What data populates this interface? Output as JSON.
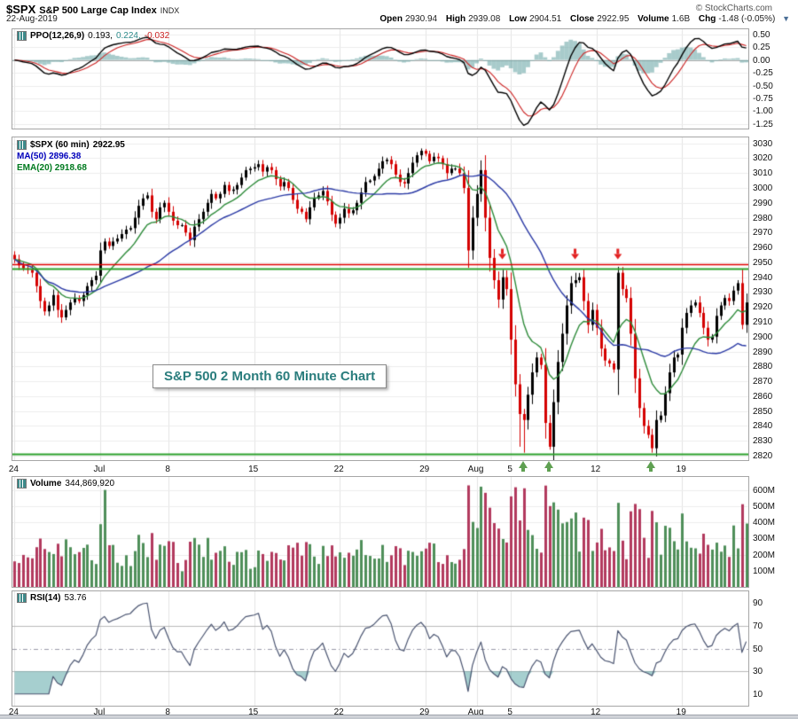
{
  "header": {
    "symbol": "$SPX",
    "name": "S&P 500 Large Cap Index",
    "exchange": "INDX",
    "copyright": "© StockCharts.com",
    "date": "22-Aug-2019",
    "dropdown_icon": "▼",
    "quote": [
      {
        "label": "Open",
        "value": "2930.94"
      },
      {
        "label": "High",
        "value": "2939.08"
      },
      {
        "label": "Low",
        "value": "2904.51"
      },
      {
        "label": "Close",
        "value": "2922.95"
      },
      {
        "label": "Volume",
        "value": "1.6B"
      },
      {
        "label": "Chg",
        "value": "-1.48 (-0.05%)"
      }
    ]
  },
  "panels": {
    "ppo": {
      "label": "PPO(12,26,9)",
      "v1": "0.193,",
      "v2": "0.224,",
      "v3": "-0.032",
      "ticks": [
        "0.50",
        "0.25",
        "0.00",
        "-0.25",
        "-0.50",
        "-0.75",
        "-1.00",
        "-1.25"
      ],
      "tick_values": [
        0.5,
        0.25,
        0,
        -0.25,
        -0.5,
        -0.75,
        -1,
        -1.25
      ],
      "range": [
        -1.34,
        0.6
      ]
    },
    "price": {
      "label": "$SPX (60 min)",
      "value": "2922.95",
      "ma": "MA(50) 2896.38",
      "ema": "EMA(20) 2918.68",
      "tick_min": 2820,
      "tick_max": 3030,
      "tick_step": 10,
      "range": [
        2817,
        3034
      ],
      "annotation": "S&P 500 2 Month 60 Minute Chart"
    },
    "volume": {
      "label": "Volume",
      "value": "344,869,920",
      "ticks": [
        "600M",
        "500M",
        "400M",
        "300M",
        "200M",
        "100M"
      ],
      "tick_values": [
        600,
        500,
        400,
        300,
        200,
        100
      ],
      "range_max": 680
    },
    "rsi": {
      "label": "RSI(14)",
      "value": "53.76",
      "ticks": [
        "90",
        "70",
        "50",
        "30",
        "10"
      ],
      "tick_values": [
        90,
        70,
        50,
        30,
        10
      ],
      "levels": [
        70,
        50,
        30
      ]
    }
  },
  "chart_data": {
    "type": "candlestick",
    "symbol": "$SPX",
    "timeframe": "60 min",
    "period_shown": "24-Jun-2019 to 22-Aug-2019",
    "bars_per_day": 4,
    "first_open": 2955,
    "closes": [
      2952,
      2948,
      2946,
      2945,
      2943,
      2934,
      2924,
      2917,
      2921,
      2928,
      2918,
      2913,
      2918,
      2923,
      2926,
      2924,
      2928,
      2934,
      2938,
      2941,
      2958,
      2964,
      2961,
      2964,
      2966,
      2969,
      2972,
      2973,
      2980,
      2988,
      2993,
      2995,
      2984,
      2979,
      2987,
      2990,
      2984,
      2978,
      2975,
      2975,
      2970,
      2965,
      2974,
      2979,
      2984,
      2990,
      2996,
      2993,
      2996,
      3002,
      2998,
      2999,
      3002,
      3007,
      3012,
      3013,
      3014,
      3016,
      3011,
      3014,
      3012,
      3006,
      3001,
      3004,
      3000,
      2992,
      2986,
      2984,
      2979,
      2987,
      2993,
      2995,
      2998,
      2991,
      2982,
      2976,
      2980,
      2986,
      2983,
      2985,
      2990,
      2997,
      3004,
      3005,
      3008,
      3013,
      3018,
      3019,
      3016,
      3009,
      3004,
      3003,
      3010,
      3017,
      3022,
      3025,
      3023,
      3018,
      3021,
      3020,
      3016,
      3010,
      3013,
      3013,
      3010,
      3000,
      2958,
      2980,
      2996,
      3012,
      2980,
      2953,
      2938,
      2925,
      2940,
      2932,
      2898,
      2868,
      2848,
      2844,
      2861,
      2876,
      2886,
      2881,
      2842,
      2826,
      2856,
      2883,
      2902,
      2921,
      2936,
      2938,
      2940,
      2924,
      2908,
      2918,
      2906,
      2892,
      2884,
      2882,
      2878,
      2943,
      2932,
      2926,
      2902,
      2872,
      2852,
      2840,
      2834,
      2825,
      2844,
      2847,
      2862,
      2876,
      2886,
      2888,
      2906,
      2916,
      2921,
      2923,
      2916,
      2906,
      2898,
      2900,
      2914,
      2921,
      2926,
      2924,
      2931,
      2936,
      2908,
      2923
    ],
    "low_overrides": [
      [
        118,
        2826
      ],
      [
        119,
        2822
      ],
      [
        125,
        2824
      ],
      [
        149,
        2822
      ],
      [
        170,
        2905
      ]
    ],
    "high_overrides": [
      [
        114,
        2945
      ],
      [
        131,
        2943
      ],
      [
        141,
        2947
      ]
    ],
    "key_levels": {
      "resistance_red": 2949,
      "resistance_green": 2946,
      "support_green": 2821
    },
    "red_arrow_bars": [
      114,
      131,
      141
    ],
    "green_arrow_bars": [
      119,
      125,
      149
    ],
    "volume_overrides": [
      [
        21,
        600
      ],
      [
        109,
        620
      ],
      [
        116,
        560
      ],
      [
        119,
        610
      ],
      [
        125,
        500
      ],
      [
        131,
        460
      ],
      [
        141,
        520
      ],
      [
        149,
        470
      ],
      [
        168,
        380
      ]
    ],
    "x_labels": [
      {
        "t": "24",
        "d": 0
      },
      {
        "t": "Jul",
        "d": 5
      },
      {
        "t": "8",
        "d": 9
      },
      {
        "t": "15",
        "d": 14
      },
      {
        "t": "22",
        "d": 19
      },
      {
        "t": "29",
        "d": 24
      },
      {
        "t": "Aug",
        "d": 27
      },
      {
        "t": "5",
        "d": 29
      },
      {
        "t": "12",
        "d": 34
      },
      {
        "t": "19",
        "d": 39
      }
    ],
    "indicators": {
      "ppo": [
        12,
        26,
        9
      ],
      "ppo_scaled": [
        7,
        15,
        5
      ],
      "ma": 50,
      "ma_scaled": 29,
      "ema": 20,
      "ema_scaled": 11,
      "rsi": 14,
      "rsi_scaled": 8
    }
  },
  "colors": {
    "candle_up": "#000000",
    "candle_down": "#d40000",
    "vol_up": "#4f8f5a",
    "vol_down": "#b23a5e",
    "ma_line": "#2b3aa5",
    "ema_line": "#2e8b3a",
    "ppo_line": "#000000",
    "ppo_signal": "#cc2222",
    "ppo_hist": "rgba(96,160,160,0.55)",
    "rsi_line": "#4a5470",
    "rsi_fill": "rgba(77,160,160,0.5)",
    "level_red": "#e00000",
    "level_green": "#2ca02c",
    "arrow_red": "#e22222",
    "arrow_green": "#5fa052",
    "grid": "#e3e3e3",
    "grid_h": "#ededed",
    "zero_line": "#aaaaaa",
    "rsi_levels": "#b8b8b8"
  }
}
